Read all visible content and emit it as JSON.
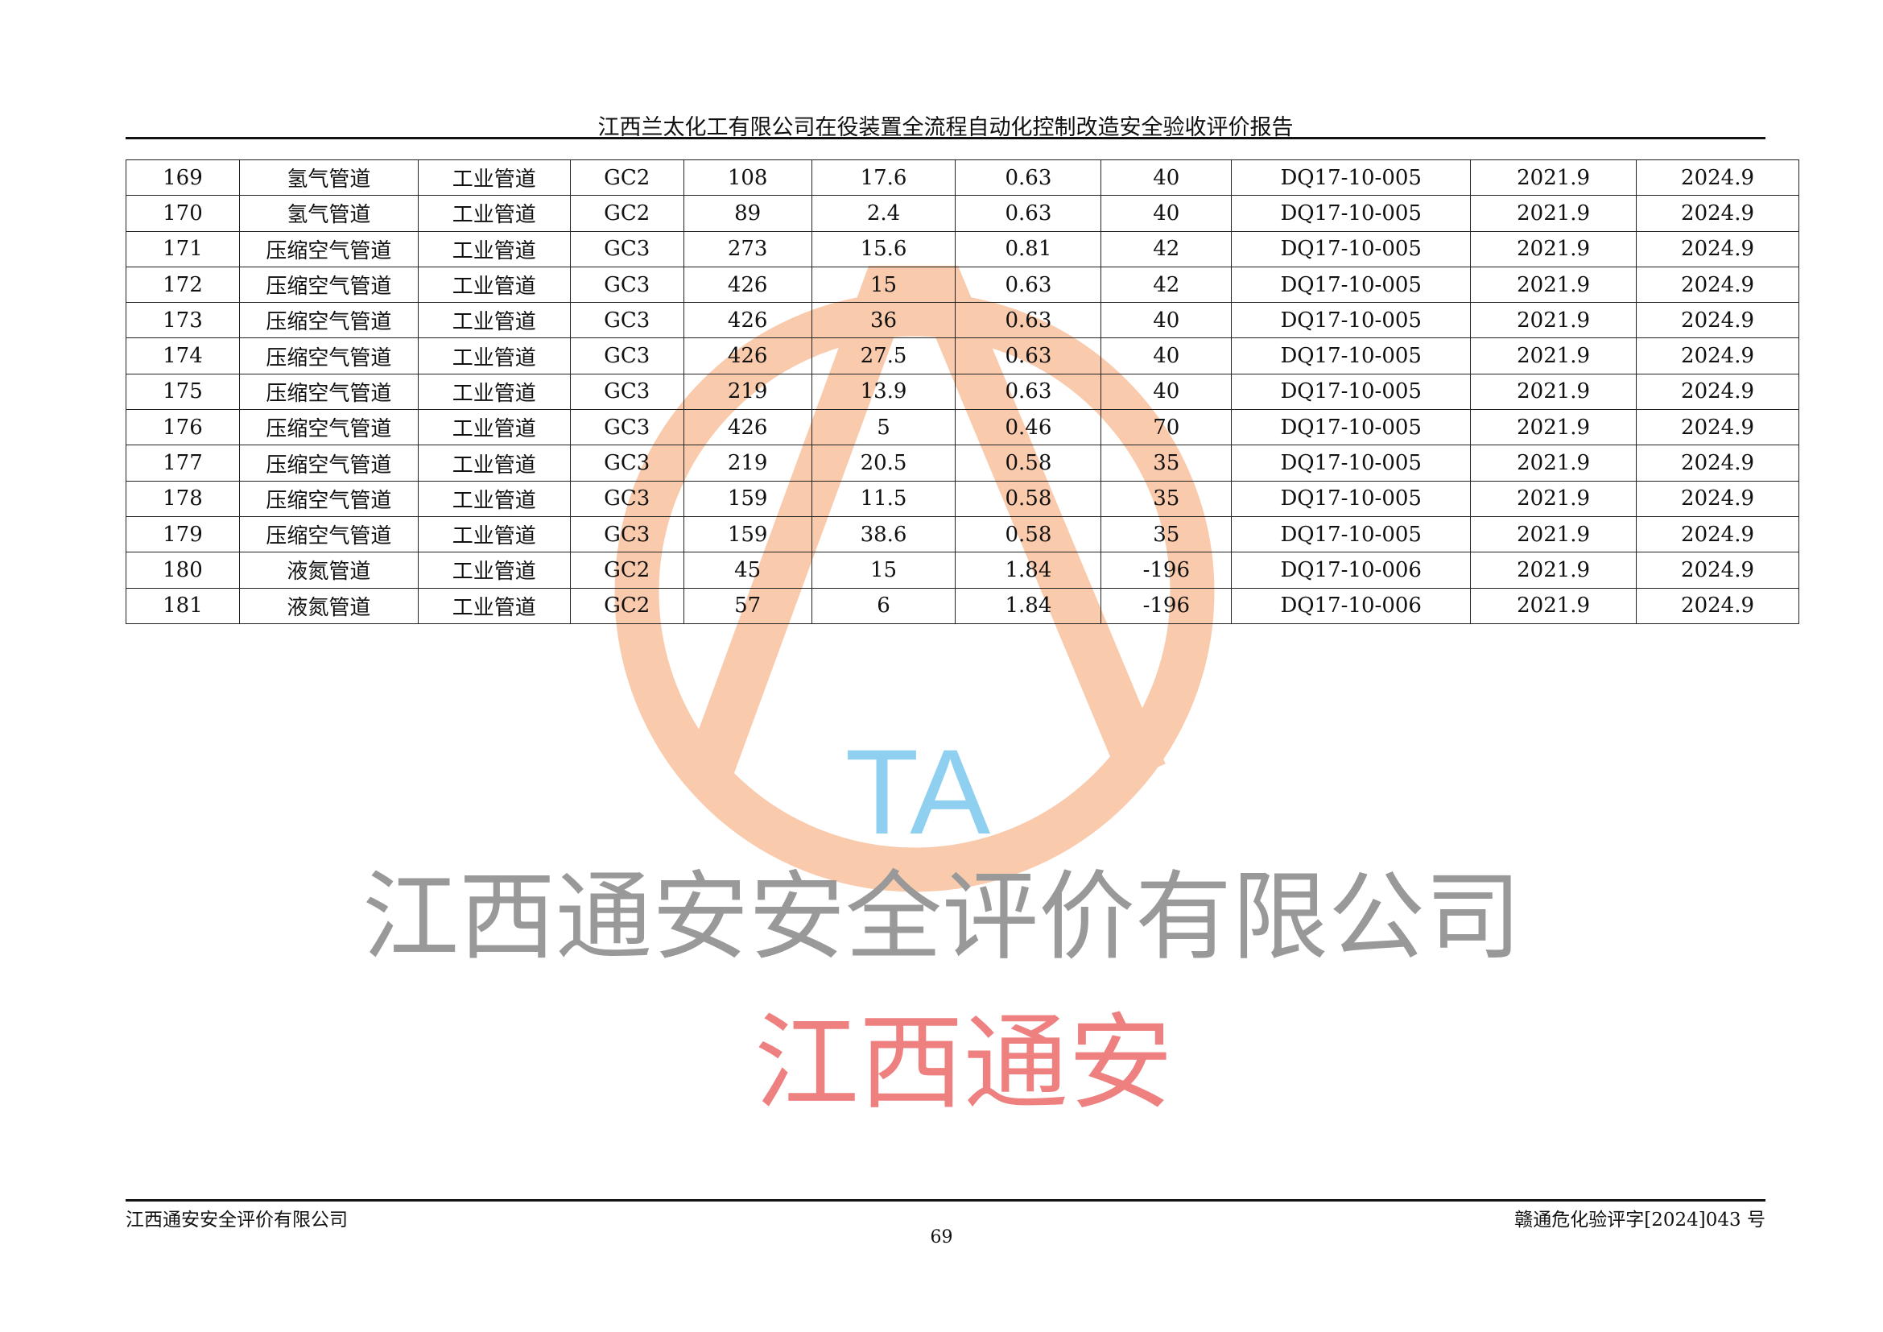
{
  "header": {
    "title": "江西兰太化工有限公司在役装置全流程自动化控制改造安全验收评价报告"
  },
  "table": {
    "rows": [
      [
        "169",
        "氢气管道",
        "工业管道",
        "GC2",
        "108",
        "17.6",
        "0.63",
        "40",
        "DQ17-10-005",
        "2021.9",
        "2024.9"
      ],
      [
        "170",
        "氢气管道",
        "工业管道",
        "GC2",
        "89",
        "2.4",
        "0.63",
        "40",
        "DQ17-10-005",
        "2021.9",
        "2024.9"
      ],
      [
        "171",
        "压缩空气管道",
        "工业管道",
        "GC3",
        "273",
        "15.6",
        "0.81",
        "42",
        "DQ17-10-005",
        "2021.9",
        "2024.9"
      ],
      [
        "172",
        "压缩空气管道",
        "工业管道",
        "GC3",
        "426",
        "15",
        "0.63",
        "42",
        "DQ17-10-005",
        "2021.9",
        "2024.9"
      ],
      [
        "173",
        "压缩空气管道",
        "工业管道",
        "GC3",
        "426",
        "36",
        "0.63",
        "40",
        "DQ17-10-005",
        "2021.9",
        "2024.9"
      ],
      [
        "174",
        "压缩空气管道",
        "工业管道",
        "GC3",
        "426",
        "27.5",
        "0.63",
        "40",
        "DQ17-10-005",
        "2021.9",
        "2024.9"
      ],
      [
        "175",
        "压缩空气管道",
        "工业管道",
        "GC3",
        "219",
        "13.9",
        "0.63",
        "40",
        "DQ17-10-005",
        "2021.9",
        "2024.9"
      ],
      [
        "176",
        "压缩空气管道",
        "工业管道",
        "GC3",
        "426",
        "5",
        "0.46",
        "70",
        "DQ17-10-005",
        "2021.9",
        "2024.9"
      ],
      [
        "177",
        "压缩空气管道",
        "工业管道",
        "GC3",
        "219",
        "20.5",
        "0.58",
        "35",
        "DQ17-10-005",
        "2021.9",
        "2024.9"
      ],
      [
        "178",
        "压缩空气管道",
        "工业管道",
        "GC3",
        "159",
        "11.5",
        "0.58",
        "35",
        "DQ17-10-005",
        "2021.9",
        "2024.9"
      ],
      [
        "179",
        "压缩空气管道",
        "工业管道",
        "GC3",
        "159",
        "38.6",
        "0.58",
        "35",
        "DQ17-10-005",
        "2021.9",
        "2024.9"
      ],
      [
        "180",
        "液氮管道",
        "工业管道",
        "GC2",
        "45",
        "15",
        "1.84",
        "-196",
        "DQ17-10-006",
        "2021.9",
        "2024.9"
      ],
      [
        "181",
        "液氮管道",
        "工业管道",
        "GC2",
        "57",
        "6",
        "1.84",
        "-196",
        "DQ17-10-006",
        "2021.9",
        "2024.9"
      ]
    ]
  },
  "watermark": {
    "logo_letters": "CTA",
    "logo_text": "江西通安",
    "diagonal_text": "江西通安安全评价有限公司",
    "colors": {
      "circle": "#f7b98f",
      "logo_text": "#f08a8a",
      "letters": "#a8d8f0",
      "diagonal": "#9a9a9a"
    }
  },
  "footer": {
    "left": "江西通安安全评价有限公司",
    "right": "赣通危化验评字[2024]043 号",
    "page_number": "69"
  }
}
